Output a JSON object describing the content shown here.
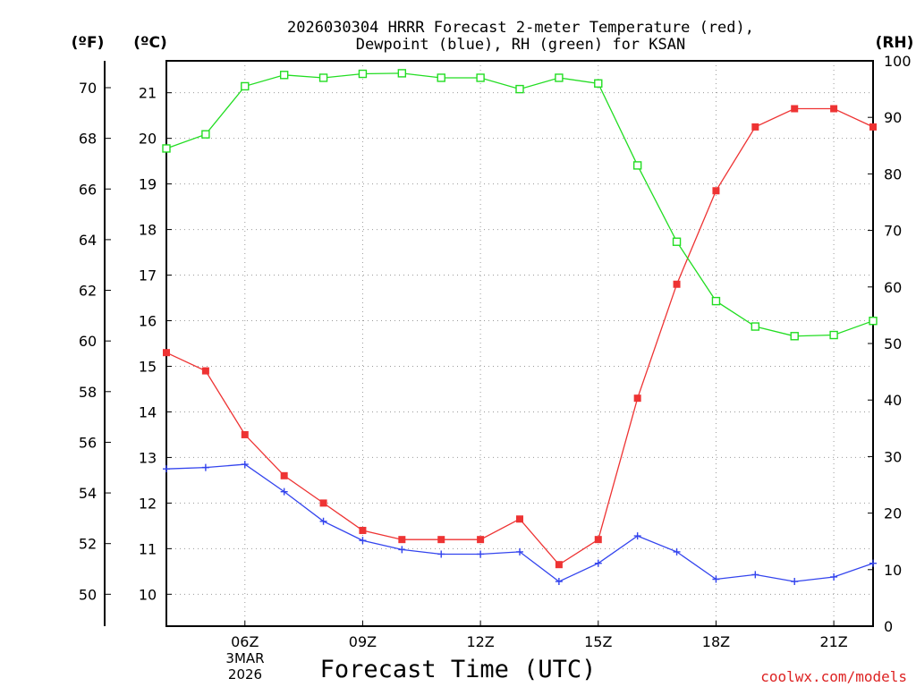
{
  "chart_data": {
    "type": "line",
    "title": "2026030304 HRRR Forecast 2-meter Temperature (red),",
    "subtitle": "Dewpoint (blue), RH (green) for KSAN",
    "xlabel": "Forecast Time (UTC)",
    "date_line1": "3MAR",
    "date_line2": "2026",
    "credit": "coolwx.com/models",
    "unit_labels": {
      "fahrenheit": "(ºF)",
      "celsius": "(ºC)",
      "rh": "(RH)"
    },
    "x_ticks": [
      "06Z",
      "09Z",
      "12Z",
      "15Z",
      "18Z",
      "21Z"
    ],
    "x_hours": [
      4,
      5,
      6,
      7,
      8,
      9,
      10,
      11,
      12,
      13,
      14,
      15,
      16,
      17,
      18,
      19,
      20,
      21,
      22
    ],
    "xlim": [
      4,
      22
    ],
    "ylim_c": [
      9.3,
      21.7
    ],
    "ylim_rh": [
      0,
      100
    ],
    "f_ticks": [
      "50",
      "52",
      "54",
      "56",
      "58",
      "60",
      "62",
      "64",
      "66",
      "68",
      "70"
    ],
    "c_ticks": [
      "10",
      "11",
      "12",
      "13",
      "14",
      "15",
      "16",
      "17",
      "18",
      "19",
      "20",
      "21"
    ],
    "rh_ticks": [
      "0",
      "10",
      "20",
      "30",
      "40",
      "50",
      "60",
      "70",
      "80",
      "90",
      "100"
    ],
    "series": [
      {
        "name": "Temperature (°C)",
        "color": "#ee3333",
        "marker": "filled-square",
        "axis": "celsius",
        "values": [
          15.3,
          14.9,
          13.5,
          12.6,
          12.0,
          11.4,
          11.2,
          11.2,
          11.2,
          11.65,
          10.65,
          11.2,
          14.3,
          16.8,
          18.85,
          20.25,
          20.65,
          20.65,
          20.25
        ]
      },
      {
        "name": "Dewpoint (°C)",
        "color": "#3344ee",
        "marker": "plus",
        "axis": "celsius",
        "values": [
          12.75,
          12.78,
          12.85,
          12.25,
          11.6,
          11.18,
          10.98,
          10.88,
          10.88,
          10.93,
          10.28,
          10.68,
          11.28,
          10.93,
          10.33,
          10.43,
          10.28,
          10.38,
          10.68
        ]
      },
      {
        "name": "RH (%)",
        "color": "#22dd22",
        "marker": "open-square",
        "axis": "rh",
        "values": [
          84.5,
          87,
          95.5,
          97.5,
          97,
          97.7,
          97.8,
          97,
          97,
          95,
          97,
          96,
          81.5,
          68,
          57.5,
          53,
          51.3,
          51.5,
          54
        ]
      }
    ]
  }
}
